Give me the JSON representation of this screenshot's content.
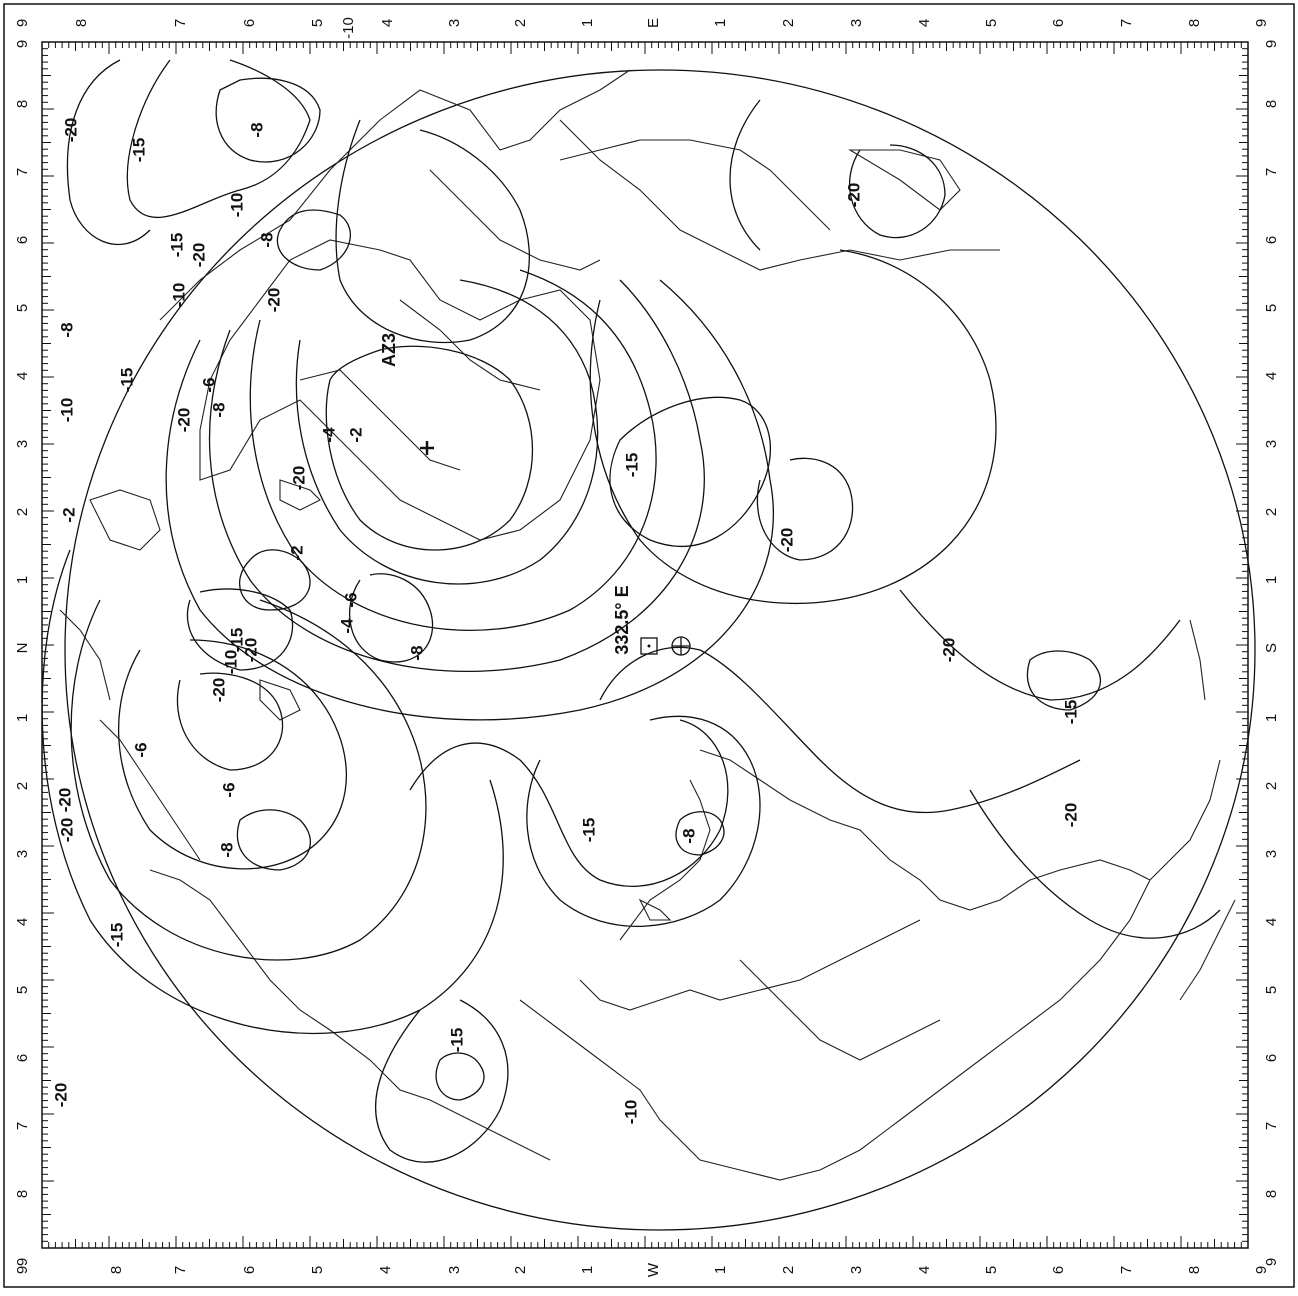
{
  "map": {
    "top_labels": [
      "9",
      "8",
      "7",
      "6",
      "5",
      "-10",
      "4",
      "3",
      "2",
      "1",
      "E",
      "1",
      "2",
      "3",
      "4",
      "5",
      "6",
      "7",
      "8",
      "9"
    ],
    "bottom_labels": [
      "9",
      "8",
      "7",
      "6",
      "5",
      "4",
      "3",
      "2",
      "1",
      "W",
      "1",
      "2",
      "3",
      "4",
      "5",
      "6",
      "7",
      "8",
      "9"
    ],
    "left_labels": [
      "9",
      "8",
      "7",
      "6",
      "5",
      "4",
      "3",
      "2",
      "1",
      "N",
      "1",
      "2",
      "3",
      "4",
      "5",
      "6",
      "7",
      "8",
      "9"
    ],
    "right_labels": [
      "9",
      "8",
      "7",
      "6",
      "5",
      "4",
      "3",
      "2",
      "1",
      "S",
      "1",
      "2",
      "3",
      "4",
      "5",
      "6",
      "7",
      "8",
      "9"
    ],
    "contour_labels": [
      "-20",
      "-15",
      "-8",
      "-10",
      "-15",
      "-20",
      "-8",
      "-10",
      "-20",
      "-8",
      "-15",
      "-6",
      "-8",
      "-20",
      "-4",
      "-2",
      "-20",
      "-10",
      "-2",
      "-2",
      "-6",
      "-4",
      "-8",
      "-15",
      "-20",
      "-10",
      "-20",
      "-6",
      "-8",
      "-6",
      "-20",
      "-20",
      "-15",
      "-15",
      "-20",
      "-10",
      "-8",
      "-15",
      "-20",
      "-20",
      "-15",
      "-20",
      "-15",
      "-20"
    ],
    "beam_label": "AZ3",
    "orbit_label": "332.5° E",
    "colors": {
      "ink": "#111111",
      "background": "#ffffff"
    },
    "icons": [
      "beam-center-cross-icon",
      "satellite-square-icon",
      "subsatellite-crosshair-icon"
    ]
  }
}
